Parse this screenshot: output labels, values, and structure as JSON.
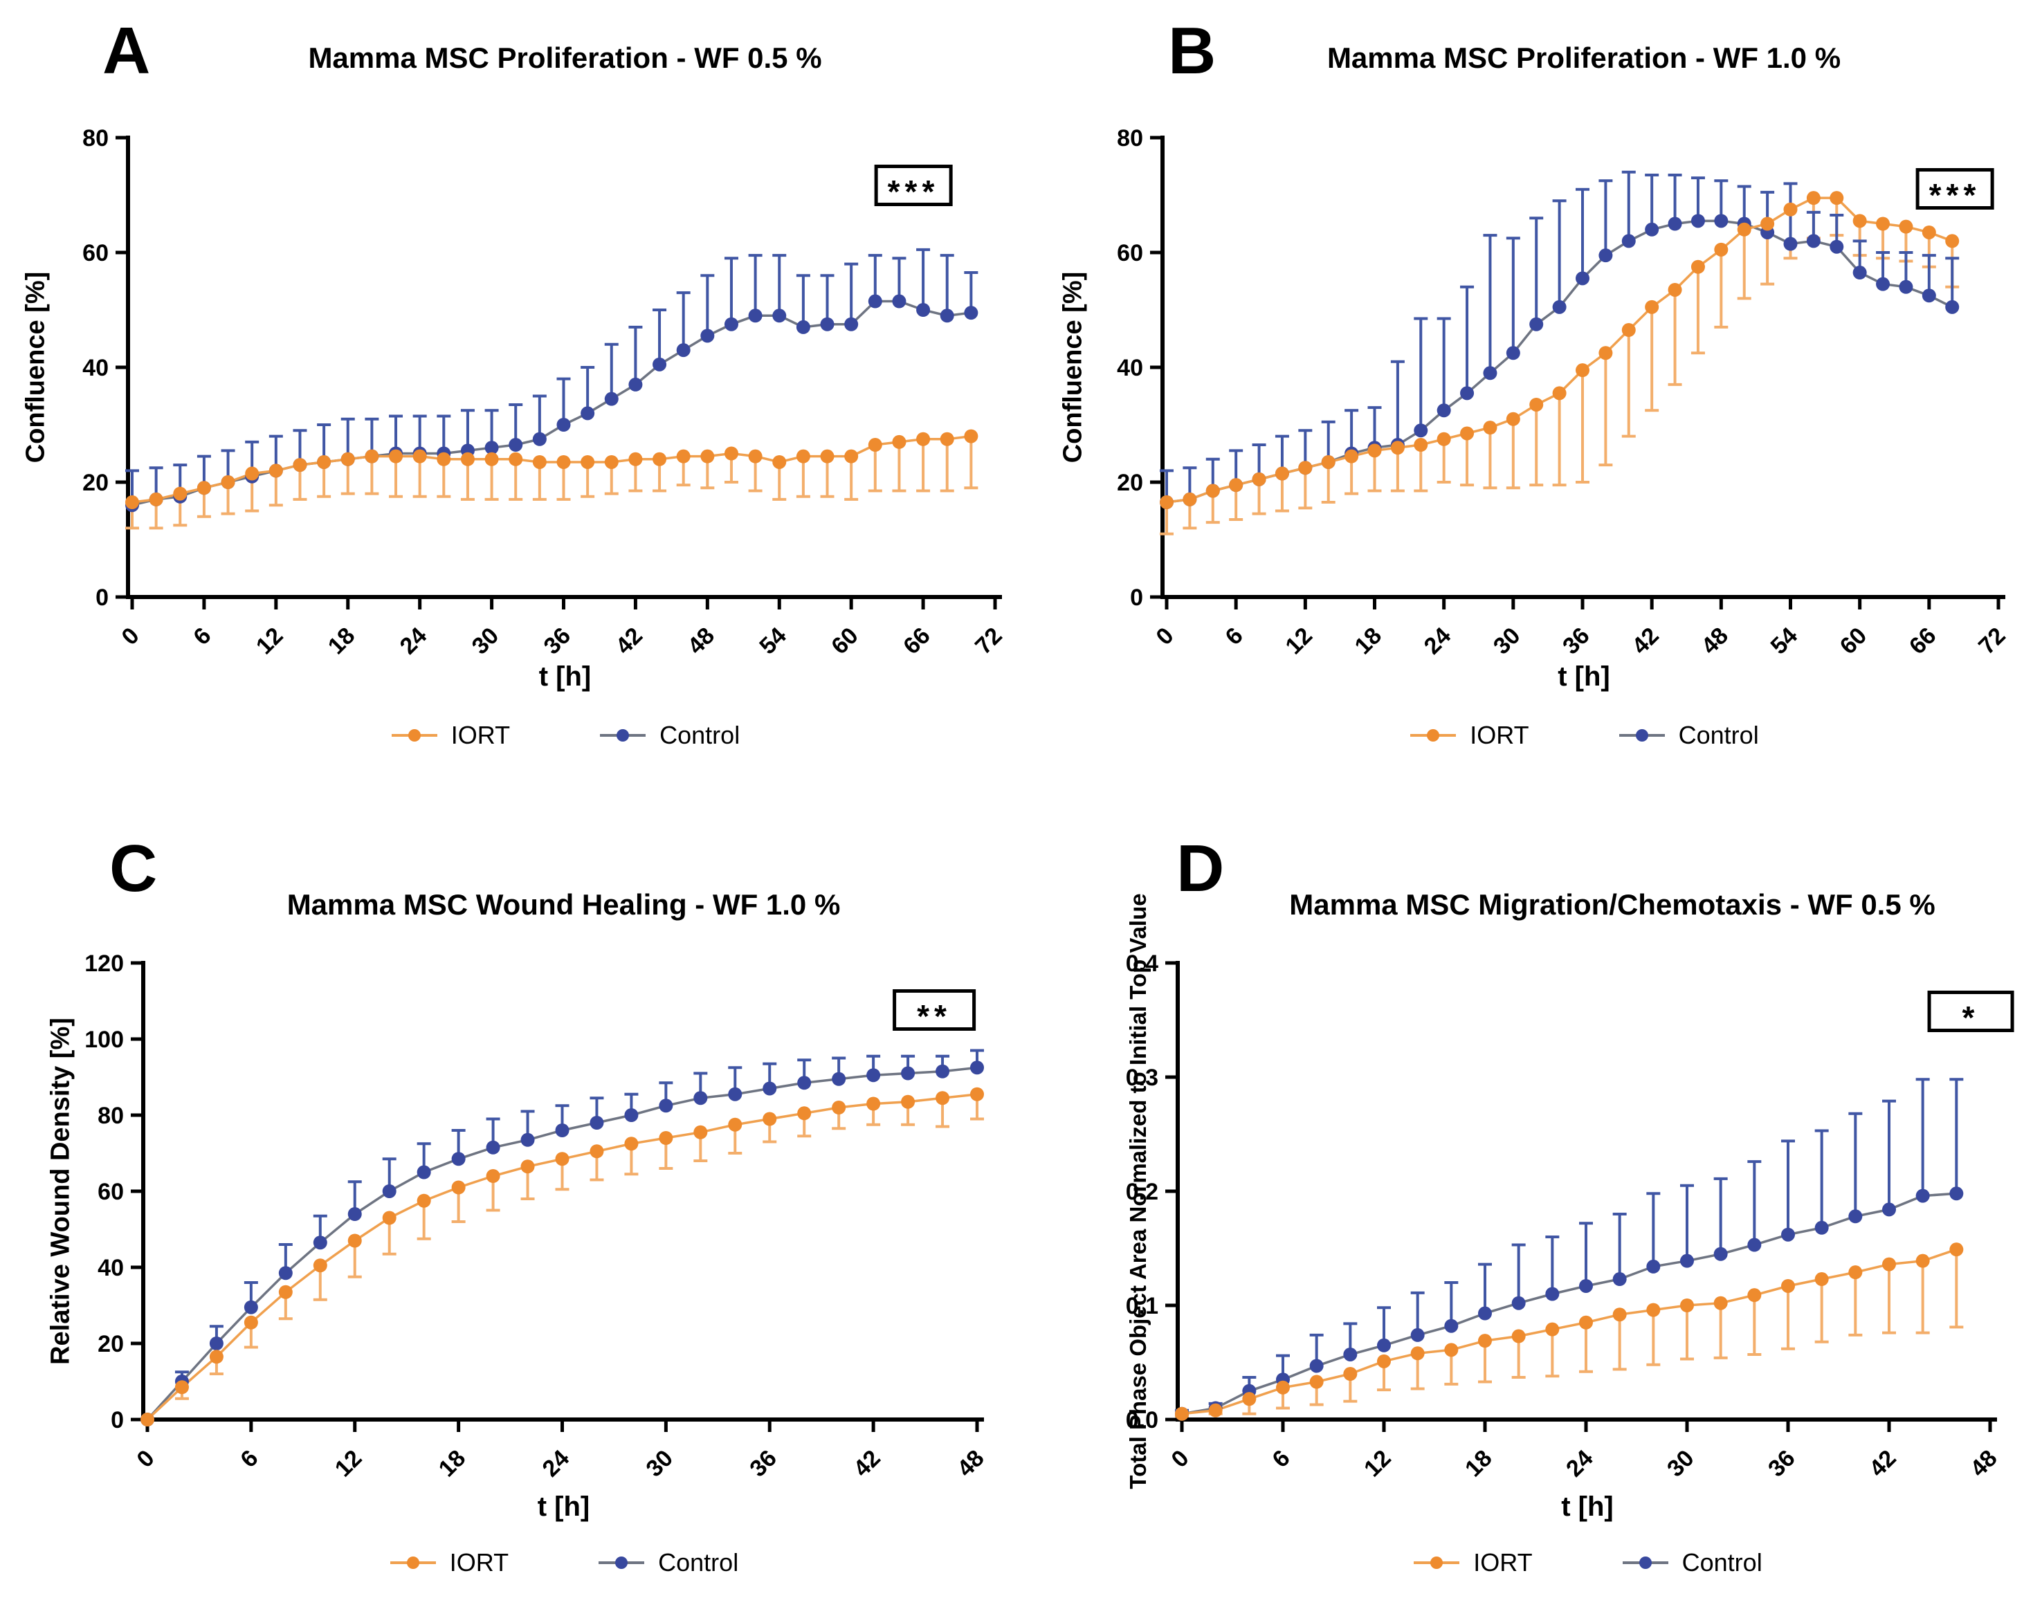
{
  "figure": {
    "background": "#ffffff",
    "axis_color": "#000000"
  },
  "chart_data": [
    {
      "panel": "A",
      "type": "line",
      "title": "Mamma MSC Proliferation - WF 0.5 %",
      "xlabel": "t [h]",
      "ylabel": "Confluence [%]",
      "significance": "***",
      "xlim": [
        0,
        72
      ],
      "ylim": [
        0,
        80
      ],
      "xticks": [
        0,
        6,
        12,
        18,
        24,
        30,
        36,
        42,
        48,
        54,
        60,
        66,
        72
      ],
      "yticks": [
        0,
        20,
        40,
        60,
        80
      ],
      "ytick_decimals": 0,
      "grid": false,
      "legend_position": "bottom",
      "x": [
        0,
        2,
        4,
        6,
        8,
        10,
        12,
        14,
        16,
        18,
        20,
        22,
        24,
        26,
        28,
        30,
        32,
        34,
        36,
        38,
        40,
        42,
        44,
        46,
        48,
        50,
        52,
        54,
        56,
        58,
        60,
        62,
        64,
        66,
        68,
        70
      ],
      "series": [
        {
          "name": "IORT",
          "color": "#EE8B2E",
          "line_color": "#F0A04E",
          "err_color": "#F3AE6B",
          "err_dir": "down",
          "values": [
            16.5,
            17,
            18,
            19,
            20,
            21.5,
            22,
            23,
            23.5,
            24,
            24.5,
            24.5,
            24.5,
            24,
            24,
            24,
            24,
            23.5,
            23.5,
            23.5,
            23.5,
            24,
            24,
            24.5,
            24.5,
            25,
            24.5,
            23.5,
            24.5,
            24.5,
            24.5,
            26.5,
            27,
            27.5,
            27.5,
            28
          ],
          "err": [
            4.5,
            5,
            5.5,
            5,
            5.5,
            6.5,
            6,
            6,
            6,
            6,
            6.5,
            7,
            7,
            6.5,
            7,
            7,
            7,
            6.5,
            6.5,
            6,
            5.5,
            5.5,
            5.5,
            5,
            5.5,
            5,
            6,
            6.5,
            7,
            7,
            7.5,
            8,
            8.5,
            9,
            9,
            9
          ]
        },
        {
          "name": "Control",
          "color": "#38489E",
          "line_color": "#6E7482",
          "err_color": "#4056A4",
          "err_dir": "up",
          "values": [
            16,
            17,
            17.5,
            19,
            20,
            21,
            22,
            23,
            23.5,
            24,
            24.5,
            25,
            25,
            25,
            25.5,
            26,
            26.5,
            27.5,
            30,
            32,
            34.5,
            37,
            40.5,
            43,
            45.5,
            47.5,
            49,
            49,
            47,
            47.5,
            47.5,
            51.5,
            51.5,
            50,
            49,
            49.5
          ],
          "err": [
            6,
            5.5,
            5.5,
            5.5,
            5.5,
            6,
            6,
            6,
            6.5,
            7,
            6.5,
            6.5,
            6.5,
            6.5,
            7,
            6.5,
            7,
            7.5,
            8,
            8,
            9.5,
            10,
            9.5,
            10,
            10.5,
            11.5,
            10.5,
            10.5,
            9,
            8.5,
            10.5,
            8,
            7.5,
            10.5,
            10.5,
            7
          ]
        }
      ]
    },
    {
      "panel": "B",
      "type": "line",
      "title": "Mamma MSC Proliferation - WF 1.0 %",
      "xlabel": "t [h]",
      "ylabel": "Confluence [%]",
      "significance": "***",
      "xlim": [
        0,
        72
      ],
      "ylim": [
        0,
        80
      ],
      "xticks": [
        0,
        6,
        12,
        18,
        24,
        30,
        36,
        42,
        48,
        54,
        60,
        66,
        72
      ],
      "yticks": [
        0,
        20,
        40,
        60,
        80
      ],
      "ytick_decimals": 0,
      "grid": false,
      "legend_position": "bottom",
      "x": [
        0,
        2,
        4,
        6,
        8,
        10,
        12,
        14,
        16,
        18,
        20,
        22,
        24,
        26,
        28,
        30,
        32,
        34,
        36,
        38,
        40,
        42,
        44,
        46,
        48,
        50,
        52,
        54,
        56,
        58,
        60,
        62,
        64,
        66,
        68
      ],
      "series": [
        {
          "name": "IORT",
          "color": "#EE8B2E",
          "line_color": "#F0A04E",
          "err_color": "#F3AE6B",
          "err_dir": "down",
          "values": [
            16.5,
            17,
            18.5,
            19.5,
            20.5,
            21.5,
            22.5,
            23.5,
            24.5,
            25.5,
            26,
            26.5,
            27.5,
            28.5,
            29.5,
            31,
            33.5,
            35.5,
            39.5,
            42.5,
            46.5,
            50.5,
            53.5,
            57.5,
            60.5,
            64,
            65,
            67.5,
            69.5,
            69.5,
            65.5,
            65,
            64.5,
            63.5,
            62
          ],
          "err": [
            5.5,
            5,
            5.5,
            6,
            6,
            6.5,
            7,
            7,
            6.5,
            7,
            7.5,
            8,
            7.5,
            9,
            10.5,
            12,
            14,
            16,
            19.5,
            19.5,
            18.5,
            18,
            16.5,
            15,
            13.5,
            12,
            10.5,
            8.5,
            7,
            6.5,
            6,
            6,
            6,
            6,
            8
          ]
        },
        {
          "name": "Control",
          "color": "#38489E",
          "line_color": "#6E7482",
          "err_color": "#4056A4",
          "err_dir": "up",
          "values": [
            16.5,
            17,
            18.5,
            19.5,
            20.5,
            21.5,
            22.5,
            23.5,
            25,
            26,
            26.5,
            29,
            32.5,
            35.5,
            39,
            42.5,
            47.5,
            50.5,
            55.5,
            59.5,
            62,
            64,
            65,
            65.5,
            65.5,
            65,
            63.5,
            61.5,
            62,
            61,
            56.5,
            54.5,
            54,
            52.5,
            50.5
          ],
          "err": [
            5.5,
            5.5,
            5.5,
            6,
            6,
            6.5,
            6.5,
            7,
            7.5,
            7,
            14.5,
            19.5,
            16,
            18.5,
            24,
            20,
            18.5,
            18.5,
            15.5,
            13,
            12,
            9.5,
            8.5,
            7.5,
            7,
            6.5,
            7,
            10.5,
            5,
            5.5,
            5.5,
            5.5,
            6,
            7,
            8.5
          ]
        }
      ]
    },
    {
      "panel": "C",
      "type": "line",
      "title": "Mamma MSC Wound Healing - WF 1.0 %",
      "xlabel": "t [h]",
      "ylabel": "Relative Wound Density [%]",
      "significance": "**",
      "xlim": [
        0,
        48
      ],
      "ylim": [
        0,
        120
      ],
      "xticks": [
        0,
        6,
        12,
        18,
        24,
        30,
        36,
        42,
        48
      ],
      "yticks": [
        0,
        20,
        40,
        60,
        80,
        100,
        120
      ],
      "ytick_decimals": 0,
      "grid": false,
      "legend_position": "bottom",
      "x": [
        0,
        2,
        4,
        6,
        8,
        10,
        12,
        14,
        16,
        18,
        20,
        22,
        24,
        26,
        28,
        30,
        32,
        34,
        36,
        38,
        40,
        42,
        44,
        46,
        48
      ],
      "series": [
        {
          "name": "IORT",
          "color": "#EE8B2E",
          "line_color": "#F0A04E",
          "err_color": "#F3AE6B",
          "err_dir": "down",
          "values": [
            0,
            8.5,
            16.5,
            25.5,
            33.5,
            40.5,
            47,
            53,
            57.5,
            61,
            64,
            66.5,
            68.5,
            70.5,
            72.5,
            74,
            75.5,
            77.5,
            79,
            80.5,
            82,
            83,
            83.5,
            84.5,
            85.5
          ],
          "err": [
            0,
            3,
            4.5,
            6.5,
            7,
            9,
            9.5,
            9.5,
            10,
            9,
            9,
            8.5,
            8,
            7.5,
            8,
            8,
            7.5,
            7.5,
            6,
            6,
            5.5,
            5.5,
            6,
            7.5,
            6.5
          ]
        },
        {
          "name": "Control",
          "color": "#38489E",
          "line_color": "#6E7482",
          "err_color": "#4056A4",
          "err_dir": "up",
          "values": [
            0,
            10,
            20,
            29.5,
            38.5,
            46.5,
            54,
            60,
            65,
            68.5,
            71.5,
            73.5,
            76,
            78,
            80,
            82.5,
            84.5,
            85.5,
            87,
            88.5,
            89.5,
            90.5,
            91,
            91.5,
            92.5
          ],
          "err": [
            0,
            2.5,
            4.5,
            6.5,
            7.5,
            7,
            8.5,
            8.5,
            7.5,
            7.5,
            7.5,
            7.5,
            6.5,
            6.5,
            5.5,
            6,
            6.5,
            7,
            6.5,
            6,
            5.5,
            5,
            4.5,
            4,
            4.5
          ]
        }
      ]
    },
    {
      "panel": "D",
      "type": "line",
      "title": "Mamma MSC Migration/Chemotaxis - WF 0.5 %",
      "xlabel": "t [h]",
      "ylabel": "Total Phase Object Area Normalized to Initial Top Value",
      "significance": "*",
      "xlim": [
        0,
        48
      ],
      "ylim": [
        0,
        0.4
      ],
      "xticks": [
        0,
        6,
        12,
        18,
        24,
        30,
        36,
        42,
        48
      ],
      "yticks": [
        0,
        0.1,
        0.2,
        0.3,
        0.4
      ],
      "ytick_decimals": 1,
      "grid": false,
      "legend_position": "bottom",
      "x": [
        0,
        2,
        4,
        6,
        8,
        10,
        12,
        14,
        16,
        18,
        20,
        22,
        24,
        26,
        28,
        30,
        32,
        34,
        36,
        38,
        40,
        42,
        44,
        46
      ],
      "series": [
        {
          "name": "IORT",
          "color": "#EE8B2E",
          "line_color": "#F0A04E",
          "err_color": "#F3AE6B",
          "err_dir": "down",
          "values": [
            0.005,
            0.008,
            0.018,
            0.028,
            0.033,
            0.04,
            0.051,
            0.058,
            0.061,
            0.069,
            0.073,
            0.079,
            0.085,
            0.092,
            0.096,
            0.1,
            0.102,
            0.109,
            0.117,
            0.123,
            0.129,
            0.136,
            0.139,
            0.149
          ],
          "err": [
            0.002,
            0.003,
            0.013,
            0.018,
            0.02,
            0.024,
            0.025,
            0.031,
            0.03,
            0.036,
            0.036,
            0.041,
            0.043,
            0.048,
            0.048,
            0.047,
            0.048,
            0.052,
            0.055,
            0.055,
            0.055,
            0.06,
            0.063,
            0.068
          ]
        },
        {
          "name": "Control",
          "color": "#38489E",
          "line_color": "#6E7482",
          "err_color": "#4056A4",
          "err_dir": "up",
          "values": [
            0.005,
            0.01,
            0.025,
            0.035,
            0.047,
            0.057,
            0.065,
            0.074,
            0.082,
            0.093,
            0.102,
            0.11,
            0.117,
            0.123,
            0.134,
            0.139,
            0.145,
            0.153,
            0.162,
            0.168,
            0.178,
            0.184,
            0.196,
            0.198
          ],
          "err": [
            0.003,
            0.004,
            0.012,
            0.021,
            0.027,
            0.027,
            0.033,
            0.037,
            0.038,
            0.043,
            0.051,
            0.05,
            0.055,
            0.057,
            0.064,
            0.066,
            0.066,
            0.073,
            0.082,
            0.085,
            0.09,
            0.095,
            0.102,
            0.1
          ]
        }
      ]
    }
  ]
}
